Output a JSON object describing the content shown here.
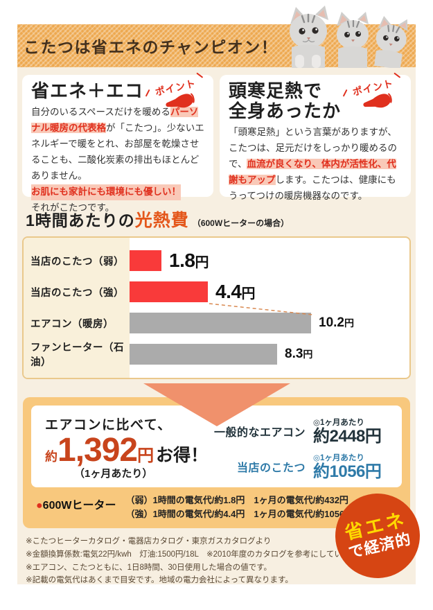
{
  "banner": {
    "title": "こたつは省エネのチャンピオン！"
  },
  "point_label": "ポイント",
  "boxes": {
    "eco": {
      "title": "省エネ＋エコ",
      "body_1": "自分のいるスペースだけを暖める",
      "highlight_1": "パーソナル暖房の代表格",
      "body_2": "が「こたつ」。少ないエネルギーで暖をとれ、お部屋を乾燥させることも、二酸化炭素の排出もほとんどありません。",
      "highlight_2": "お肌にも家計にも環境にも優しい！",
      "body_3": "それがこたつです。"
    },
    "warmth": {
      "title_line1": "頭寒足熱で",
      "title_line2": "全身あったか",
      "body_1": "「頭寒足熱」という言葉がありますが、こたつは、足元だけをしっかり暖めるので、",
      "highlight": "血流が良くなり、体内が活性化、代謝もアップ",
      "body_2": "します。こたつは、健康にもうってつけの暖房機器なのです。"
    }
  },
  "chart_section": {
    "title_prefix": "1時間あたりの",
    "title_accent": "光熱費",
    "title_note": "（600Wヒーターの場合）"
  },
  "chart_data": {
    "type": "bar",
    "orientation": "horizontal",
    "title": "1時間あたりの光熱費（600Wヒーターの場合）",
    "unit": "円",
    "categories": [
      "当店のこたつ（弱）",
      "当店のこたつ（強）",
      "エアコン（暖房）",
      "ファンヒーター（石油）"
    ],
    "values": [
      1.8,
      4.4,
      10.2,
      8.3
    ],
    "bar_colors": [
      "#f93a3a",
      "#f93a3a",
      "#ababab",
      "#ababab"
    ],
    "value_emphasis": [
      true,
      true,
      false,
      false
    ],
    "xlim": [
      0,
      11
    ],
    "grid": false,
    "legend": false,
    "annotation": "dashed line connects 当店のこたつ（強）bar end to エアコン（暖房）bar end"
  },
  "comparison": {
    "headline": "エアコンに比べて、",
    "approx": "約",
    "amount": "1,392",
    "unit": "円",
    "suffix": "お得！",
    "per_month_note": "（1ヶ月あたり）",
    "rows": [
      {
        "label": "一般的なエアコン",
        "note": "◎1ヶ月あたり",
        "value": "約2448円",
        "color": "#22333b"
      },
      {
        "label": "当店のこたつ",
        "note": "◎1ヶ月あたり",
        "value": "約1056円",
        "color": "#2e7aa8"
      }
    ],
    "heater": {
      "bullet": "●",
      "label": "600Wヒーター",
      "lines": [
        "（弱）1時間の電気代/約1.8円　1ヶ月の電気代/約432円",
        "（強）1時間の電気代/約4.4円　1ヶ月の電気代/約1056円"
      ]
    }
  },
  "badge": {
    "line1": "省エネ",
    "line2": "で経済的"
  },
  "footnotes": [
    "※こたつヒーターカタログ・電器店カタログ・東京ガスカタログより",
    "※金額換算係数:電気22円/kwh　灯油:1500円/18L　※2010年度のカタログを参考にしています。",
    "※エアコン、こたつともに、1日8時間、30日使用した場合の値です。",
    "※記載の電気代はあくまで目安です。地域の電力会社によって異なります。"
  ],
  "colors": {
    "banner_orange": "#eda84f",
    "banner_text_brown": "#43301d",
    "background_cream": "#f7efe1",
    "accent_red": "#e0301e",
    "highlight_pink": "#f9c9b8",
    "chart_accent_orange": "#e4571b",
    "bar_red": "#f93a3a",
    "bar_gray": "#ababab",
    "chart_border_tan": "#eac88b",
    "arrow_salmon": "#f0916c",
    "panel_orange": "#f8c87d",
    "price_red": "#c8441c",
    "kotatsu_blue": "#2e7aa8",
    "badge_red": "#d64513",
    "badge_yellow": "#ffd900"
  }
}
